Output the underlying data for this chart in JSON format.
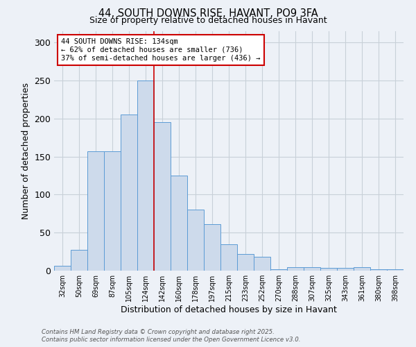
{
  "title_line1": "44, SOUTH DOWNS RISE, HAVANT, PO9 3FA",
  "title_line2": "Size of property relative to detached houses in Havant",
  "xlabel": "Distribution of detached houses by size in Havant",
  "ylabel": "Number of detached properties",
  "bin_labels": [
    "32sqm",
    "50sqm",
    "69sqm",
    "87sqm",
    "105sqm",
    "124sqm",
    "142sqm",
    "160sqm",
    "178sqm",
    "197sqm",
    "215sqm",
    "233sqm",
    "252sqm",
    "270sqm",
    "288sqm",
    "307sqm",
    "325sqm",
    "343sqm",
    "361sqm",
    "380sqm",
    "398sqm"
  ],
  "bar_heights": [
    6,
    27,
    157,
    157,
    205,
    250,
    195,
    125,
    80,
    61,
    35,
    22,
    18,
    2,
    5,
    5,
    4,
    4,
    5,
    2,
    2
  ],
  "bar_color": "#cddaeb",
  "bar_edge_color": "#5b9bd5",
  "grid_color": "#c8d0d8",
  "background_color": "#edf1f7",
  "red_line_x": 5.5,
  "annotation_text": "44 SOUTH DOWNS RISE: 134sqm\n← 62% of detached houses are smaller (736)\n37% of semi-detached houses are larger (436) →",
  "annotation_box_color": "#ffffff",
  "annotation_box_edge": "#cc0000",
  "annotation_text_color": "#000000",
  "footer_text": "Contains HM Land Registry data © Crown copyright and database right 2025.\nContains public sector information licensed under the Open Government Licence v3.0.",
  "ylim": [
    0,
    315
  ],
  "yticks": [
    0,
    50,
    100,
    150,
    200,
    250,
    300
  ]
}
